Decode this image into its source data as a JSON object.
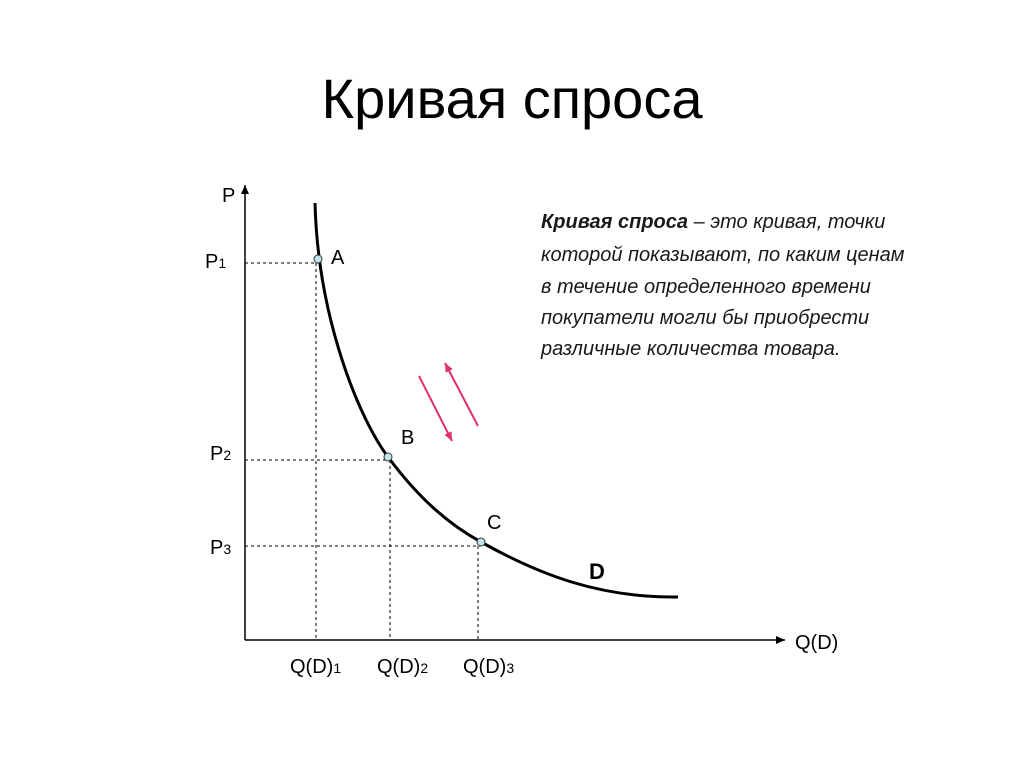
{
  "header": {
    "title": "Кривая спроса"
  },
  "axes": {
    "y_label": "P",
    "x_label": "Q(D)"
  },
  "price_labels": [
    {
      "main": "P",
      "sub": "1"
    },
    {
      "main": "P",
      "sub": "2"
    },
    {
      "main": "P",
      "sub": "3"
    }
  ],
  "quantity_labels": [
    {
      "main": "Q(D)",
      "sub": "1"
    },
    {
      "main": "Q(D)",
      "sub": "2"
    },
    {
      "main": "Q(D)",
      "sub": "3"
    }
  ],
  "points": [
    "A",
    "B",
    "C"
  ],
  "curve_label": "D",
  "definition": {
    "term": "Кривая спроса",
    "lines": [
      " – это кривая, точки",
      "которой показывают, по каким ценам",
      "в течение определенного времени",
      "покупатели могли бы приобрести",
      "различные количества товара."
    ]
  }
}
